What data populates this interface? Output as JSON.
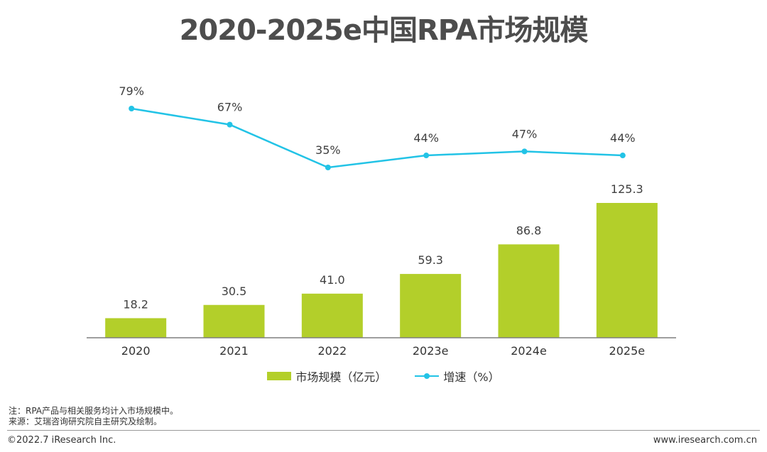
{
  "title": "2020-2025e中国RPA市场规模",
  "chart_data": {
    "type": "bar",
    "categories": [
      "2020",
      "2021",
      "2022",
      "2023e",
      "2024e",
      "2025e"
    ],
    "series": [
      {
        "name": "市场规模（亿元）",
        "type": "bar",
        "values": [
          18.2,
          30.5,
          41.0,
          59.3,
          86.8,
          125.3
        ],
        "labels": [
          "18.2",
          "30.5",
          "41.0",
          "59.3",
          "86.8",
          "125.3"
        ],
        "color": "#b3cf2a"
      },
      {
        "name": "增速（%）",
        "type": "line",
        "values": [
          79,
          67,
          35,
          44,
          47,
          44
        ],
        "labels": [
          "79%",
          "67%",
          "35%",
          "44%",
          "47%",
          "44%"
        ],
        "color": "#22c3e6"
      }
    ],
    "ylim_bar": [
      0,
      150
    ],
    "ylim_line": [
      0,
      100
    ]
  },
  "notes": [
    "注：RPA产品与相关服务均计入市场规模中。",
    "来源：艾瑞咨询研究院自主研究及绘制。"
  ],
  "footer": {
    "copyright": "©2022.7 iResearch Inc.",
    "website": "www.iresearch.com.cn"
  }
}
